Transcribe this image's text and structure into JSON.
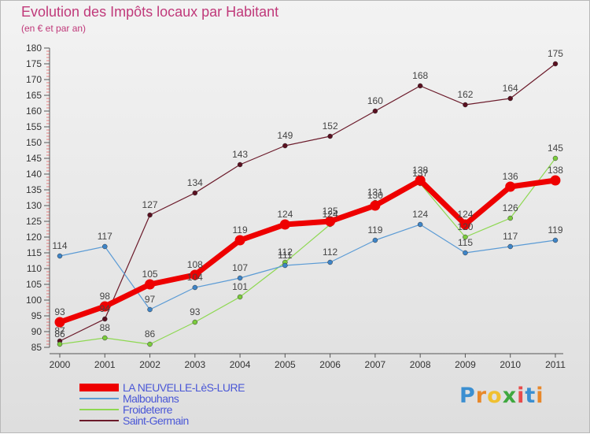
{
  "title": "Evolution des Impôts locaux par Habitant",
  "subtitle": "(en € et par an)",
  "logo": {
    "letters": [
      "P",
      "r",
      "o",
      "x",
      "i",
      "t",
      "i"
    ],
    "colors": [
      "#3b8fd1",
      "#e8882a",
      "#f0c030",
      "#3fa83f",
      "#e84b4b",
      "#3b8fd1",
      "#e8882a"
    ]
  },
  "chart_data": {
    "type": "line",
    "x": [
      "2000",
      "2001",
      "2002",
      "2003",
      "2004",
      "2005",
      "2006",
      "2007",
      "2008",
      "2009",
      "2010",
      "2011"
    ],
    "ylim": [
      85,
      180
    ],
    "yticks": [
      85,
      90,
      95,
      100,
      105,
      110,
      115,
      120,
      125,
      130,
      135,
      140,
      145,
      150,
      155,
      160,
      165,
      170,
      175,
      180
    ],
    "grid": false,
    "legend_position": "bottom-left",
    "series": [
      {
        "name": "Saint-Germain",
        "color": "#6b1a2a",
        "marker": "#5a1020",
        "width": 1.2,
        "values": [
          87,
          94,
          127,
          134,
          143,
          149,
          152,
          160,
          168,
          162,
          164,
          175
        ]
      },
      {
        "name": "Froideterre",
        "color": "#8ed852",
        "marker": "#7bcc3c",
        "width": 1.2,
        "values": [
          86,
          88,
          86,
          93,
          101,
          112,
          124,
          131,
          137,
          120,
          126,
          145
        ]
      },
      {
        "name": "Malbouhans",
        "color": "#5b9bd5",
        "marker": "#3e85c8",
        "width": 1.2,
        "values": [
          114,
          117,
          97,
          104,
          107,
          111,
          112,
          119,
          124,
          115,
          117,
          119
        ]
      },
      {
        "name": "LA NEUVELLE-LèS-LURE",
        "color": "#ee0000",
        "marker": "#ee0000",
        "width": 7,
        "values": [
          93,
          98,
          105,
          108,
          119,
          124,
          125,
          130,
          138,
          124,
          136,
          138
        ]
      }
    ],
    "legend_order": [
      "LA NEUVELLE-LèS-LURE",
      "Malbouhans",
      "Froideterre",
      "Saint-Germain"
    ]
  }
}
